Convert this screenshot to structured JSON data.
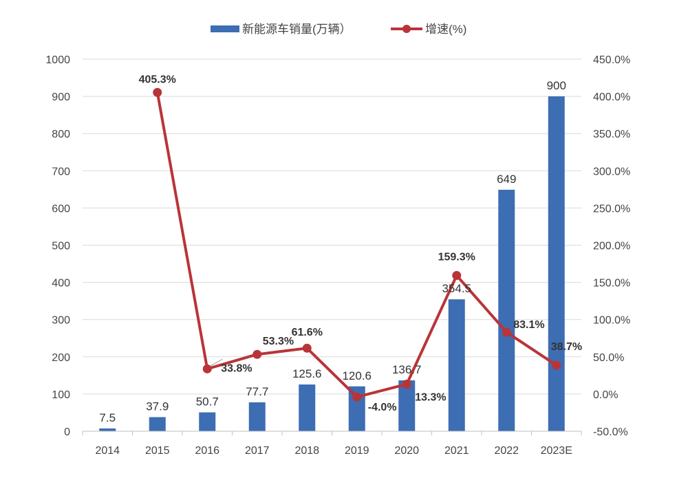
{
  "chart_data": {
    "type": "bar+line",
    "title": "",
    "categories": [
      "2014",
      "2015",
      "2016",
      "2017",
      "2018",
      "2019",
      "2020",
      "2021",
      "2022",
      "2023E"
    ],
    "series": [
      {
        "name": "新能源车销量(万辆）",
        "type": "bar",
        "axis": "left",
        "color": "#3d6db3",
        "values": [
          7.5,
          37.9,
          50.7,
          77.7,
          125.6,
          120.6,
          136.7,
          354.5,
          649,
          900
        ],
        "labels": [
          "7.5",
          "37.9",
          "50.7",
          "77.7",
          "125.6",
          "120.6",
          "136.7",
          "354.5",
          "649",
          "900"
        ]
      },
      {
        "name": "增速(%)",
        "type": "line",
        "axis": "right",
        "color": "#b93438",
        "values": [
          null,
          405.3,
          33.8,
          53.3,
          61.6,
          -4.0,
          13.3,
          159.3,
          83.1,
          38.7
        ],
        "labels": [
          "",
          "405.3%",
          "33.8%",
          "53.3%",
          "61.6%",
          "-4.0%",
          "13.3%",
          "159.3%",
          "83.1%",
          "38.7%"
        ]
      }
    ],
    "left_axis": {
      "ylim": [
        0,
        1000
      ],
      "ticks": [
        "0",
        "100",
        "200",
        "300",
        "400",
        "500",
        "600",
        "700",
        "800",
        "900",
        "1000"
      ]
    },
    "right_axis": {
      "ylim": [
        -50,
        450
      ],
      "ticks": [
        "-50.0%",
        "0.0%",
        "50.0%",
        "100.0%",
        "150.0%",
        "200.0%",
        "250.0%",
        "300.0%",
        "350.0%",
        "400.0%",
        "450.0%"
      ]
    },
    "grid": true,
    "legend_position": "top-center"
  }
}
